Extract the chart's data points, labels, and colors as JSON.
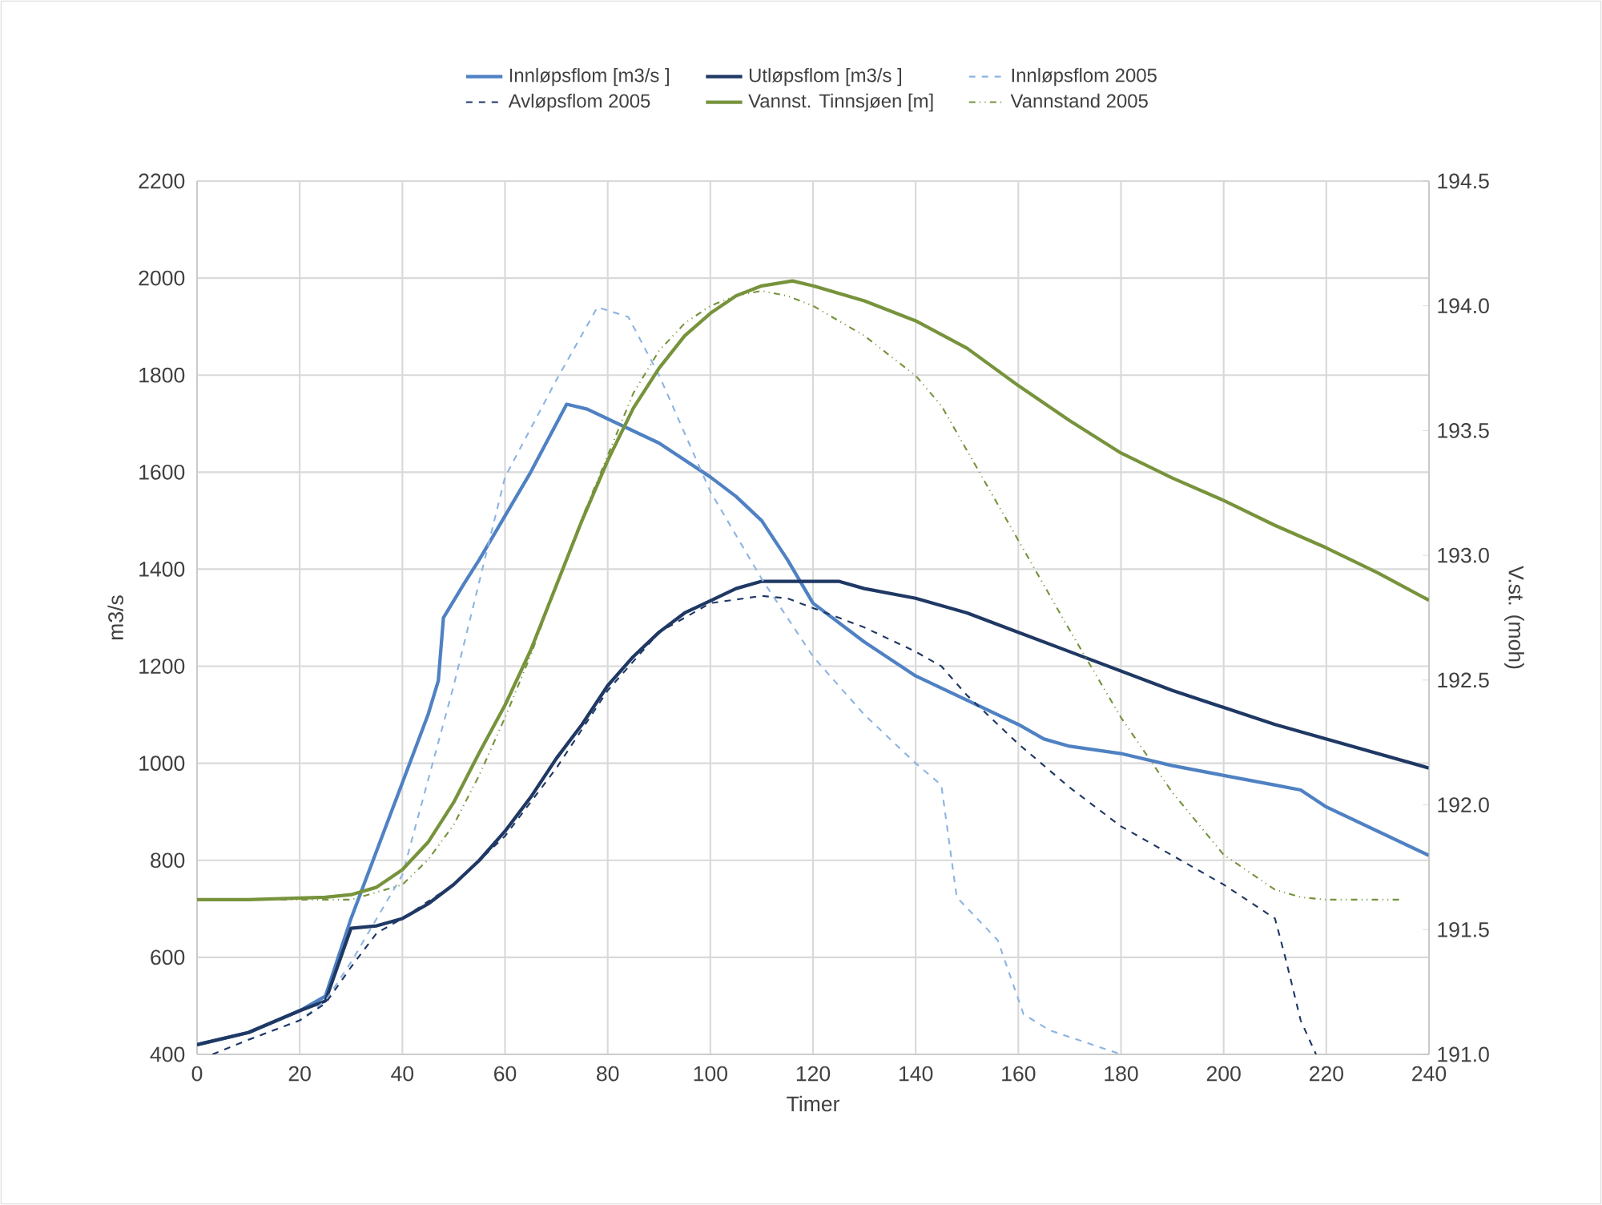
{
  "chart_data": {
    "type": "line",
    "xlabel": "Timer",
    "ylabel": "m3/s",
    "y2label": "V.st. (moh)",
    "xlim": [
      0,
      240
    ],
    "xticks": [
      0,
      20,
      40,
      60,
      80,
      100,
      120,
      140,
      160,
      180,
      200,
      220,
      240
    ],
    "ylim": [
      400,
      2200
    ],
    "yticks": [
      400,
      600,
      800,
      1000,
      1200,
      1400,
      1600,
      1800,
      2000,
      2200
    ],
    "y2lim": [
      191,
      194.5
    ],
    "y2ticks": [
      {
        "value": 191,
        "label": "191.0"
      },
      {
        "value": 191.5,
        "label": "191.5"
      },
      {
        "value": 192,
        "label": "192.0"
      },
      {
        "value": 192.5,
        "label": "192.5"
      },
      {
        "value": 193,
        "label": "193.0"
      },
      {
        "value": 193.5,
        "label": "193.5"
      },
      {
        "value": 194,
        "label": "194.0"
      },
      {
        "value": 194.5,
        "label": "194.5"
      }
    ],
    "grid": true,
    "legend": "top",
    "series": [
      {
        "name": "Innløpsflom [m3/s ]",
        "color": "#4f81c3",
        "line_style": "solid",
        "x": [
          0,
          10,
          20,
          25,
          30,
          35,
          40,
          45,
          47,
          48,
          52,
          55,
          60,
          65,
          72,
          76,
          80,
          90,
          100,
          105,
          110,
          115,
          120,
          130,
          140,
          150,
          160,
          165,
          170,
          180,
          190,
          200,
          210,
          215,
          220,
          230,
          240
        ],
        "values": [
          420,
          445,
          490,
          520,
          680,
          820,
          960,
          1100,
          1170,
          1300,
          1370,
          1420,
          1510,
          1600,
          1740,
          1730,
          1710,
          1660,
          1590,
          1550,
          1500,
          1420,
          1330,
          1250,
          1180,
          1130,
          1080,
          1050,
          1035,
          1020,
          995,
          975,
          955,
          945,
          910,
          860,
          810
        ]
      },
      {
        "name": "Utløpsflom [m3/s ]",
        "color": "#1f3864",
        "line_style": "solid",
        "x": [
          0,
          10,
          20,
          25,
          30,
          35,
          40,
          45,
          50,
          55,
          60,
          65,
          70,
          75,
          80,
          85,
          90,
          95,
          100,
          105,
          110,
          125,
          130,
          140,
          150,
          160,
          170,
          180,
          190,
          200,
          210,
          220,
          230,
          240
        ],
        "values": [
          420,
          445,
          490,
          510,
          660,
          665,
          680,
          710,
          750,
          800,
          860,
          930,
          1010,
          1080,
          1160,
          1220,
          1270,
          1310,
          1335,
          1360,
          1375,
          1375,
          1360,
          1340,
          1310,
          1270,
          1230,
          1190,
          1150,
          1115,
          1080,
          1050,
          1020,
          990
        ]
      },
      {
        "name": "Innløpsflom 2005",
        "color": "#8db4e2",
        "line_style": "dashed",
        "x": [
          10,
          20,
          25,
          30,
          35,
          40,
          50,
          60,
          70,
          78,
          84,
          90,
          100,
          110,
          120,
          130,
          140,
          145,
          148,
          156,
          161,
          166,
          180
        ],
        "values": [
          430,
          470,
          510,
          590,
          680,
          770,
          1160,
          1590,
          1790,
          1940,
          1920,
          1800,
          1560,
          1380,
          1220,
          1100,
          1000,
          955,
          724,
          635,
          483,
          450,
          400
        ]
      },
      {
        "name": "Avløpsflom 2005",
        "color": "#1f3864",
        "line_style": "dashed",
        "x": [
          3,
          10,
          20,
          25,
          30,
          35,
          40,
          45,
          50,
          60,
          70,
          80,
          90,
          100,
          110,
          115,
          120,
          130,
          140,
          145,
          150,
          160,
          170,
          180,
          190,
          200,
          210,
          212,
          215,
          218
        ],
        "values": [
          400,
          430,
          470,
          505,
          580,
          650,
          680,
          715,
          750,
          850,
          990,
          1150,
          1270,
          1330,
          1345,
          1340,
          1320,
          1280,
          1230,
          1200,
          1140,
          1040,
          950,
          870,
          810,
          750,
          680,
          600,
          470,
          400
        ]
      },
      {
        "name": "Vannst. Tinnsjøen [m]",
        "color": "#77933c",
        "line_style": "solid",
        "axis": "y2",
        "x": [
          0,
          10,
          25,
          30,
          35,
          40,
          45,
          50,
          55,
          60,
          65,
          70,
          75,
          80,
          85,
          90,
          95,
          100,
          105,
          110,
          116,
          120,
          130,
          140,
          150,
          160,
          170,
          180,
          190,
          200,
          210,
          220,
          230,
          240
        ],
        "values": [
          191.62,
          191.62,
          191.63,
          191.64,
          191.67,
          191.74,
          191.85,
          192.01,
          192.21,
          192.4,
          192.62,
          192.88,
          193.14,
          193.38,
          193.59,
          193.75,
          193.88,
          193.97,
          194.04,
          194.08,
          194.1,
          194.08,
          194.02,
          193.94,
          193.83,
          193.68,
          193.54,
          193.41,
          193.31,
          193.22,
          193.12,
          193.03,
          192.93,
          192.82
        ]
      },
      {
        "name": "Vannstand 2005",
        "color": "#77933c",
        "line_style": "dashdotdotted",
        "axis": "y2",
        "x": [
          0,
          30,
          40,
          45,
          50,
          55,
          60,
          65,
          70,
          75,
          80,
          85,
          90,
          95,
          100,
          105,
          110,
          115,
          120,
          130,
          140,
          145,
          150,
          160,
          170,
          180,
          190,
          200,
          210,
          215,
          220,
          235
        ],
        "values": [
          191.62,
          191.62,
          191.68,
          191.78,
          191.92,
          192.12,
          192.35,
          192.6,
          192.88,
          193.15,
          193.4,
          193.65,
          193.82,
          193.93,
          194.0,
          194.04,
          194.06,
          194.04,
          194.0,
          193.88,
          193.72,
          193.6,
          193.42,
          193.06,
          192.7,
          192.35,
          192.05,
          191.8,
          191.66,
          191.63,
          191.62,
          191.62
        ]
      }
    ]
  }
}
